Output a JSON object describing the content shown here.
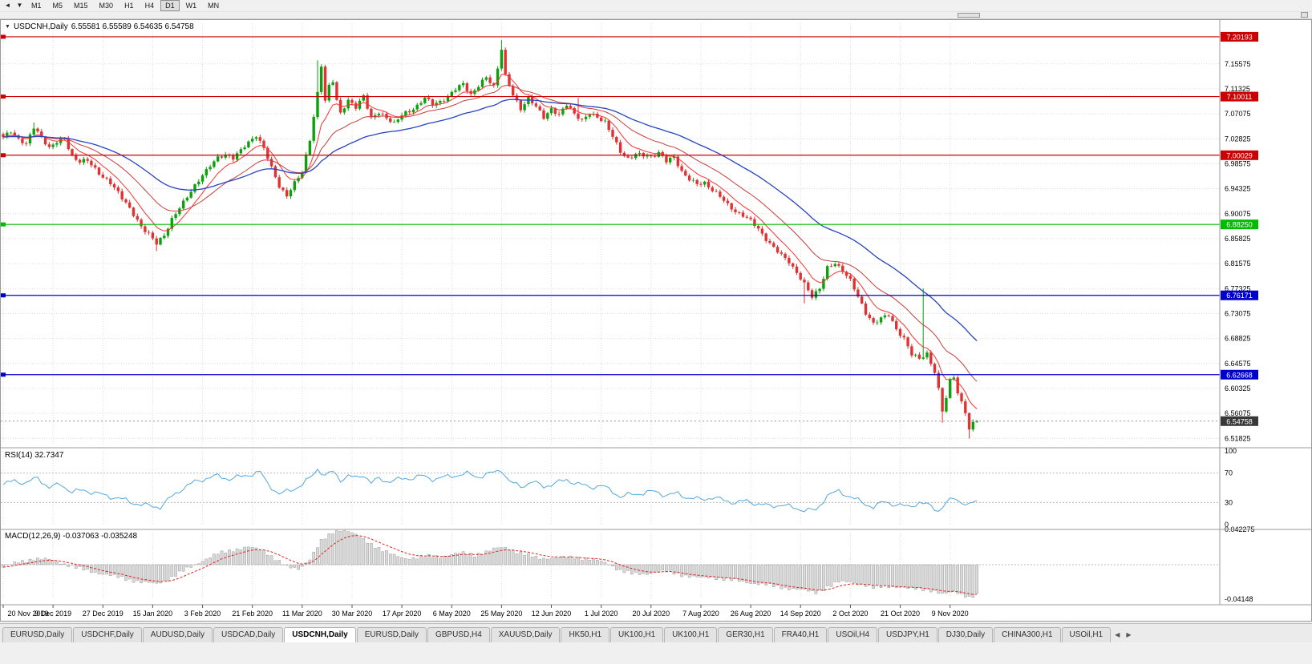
{
  "toolbar": {
    "periods": [
      "M1",
      "M5",
      "M15",
      "M30",
      "H1",
      "H4",
      "D1",
      "W1",
      "MN"
    ],
    "active": "D1"
  },
  "icons": {
    "toolbar_arrow_a": "◄",
    "toolbar_arrow_b": "▼",
    "title_collapse": "▼",
    "tab_scroll_left": "◀",
    "tab_scroll_right": "▶"
  },
  "window": {
    "title": "USDCNH,Daily",
    "ohlc": "6.55581 6.55589 6.54635 6.54758"
  },
  "chart_data": {
    "type": "candlestick",
    "symbol": "USDCNH",
    "period": "Daily",
    "num_candles": 255,
    "x_labels": [
      "20 Nov 2019",
      "9 Dec 2019",
      "27 Dec 2019",
      "15 Jan 2020",
      "3 Feb 2020",
      "21 Feb 2020",
      "11 Mar 2020",
      "30 Mar 2020",
      "17 Apr 2020",
      "6 May 2020",
      "25 May 2020",
      "12 Jun 2020",
      "1 Jul 2020",
      "20 Jul 2020",
      "7 Aug 2020",
      "26 Aug 2020",
      "14 Sep 2020",
      "2 Oct 2020",
      "21 Oct 2020",
      "9 Nov 2020"
    ],
    "days_per_label": 13,
    "price_axis": {
      "ticks": [
        "7.15575",
        "7.11325",
        "7.07075",
        "7.02825",
        "6.98575",
        "6.94325",
        "6.90075",
        "6.85825",
        "6.81575",
        "6.77325",
        "6.73075",
        "6.68825",
        "6.64575",
        "6.60325",
        "6.56075",
        "6.51825"
      ],
      "view_max": 7.225,
      "view_min": 6.505
    },
    "colors": {
      "bull": "#0ca00c",
      "bear": "#e03232",
      "ma_fast": "#ff3030",
      "ma_mid": "#cc3b3b",
      "ma_slow": "#2743c4",
      "rsi_line": "#52a7e0",
      "macd_hist": "#d9d9d9",
      "macd_signal": "#e02020",
      "grid": "#dcdcdc",
      "separator": "#9a9a9a"
    },
    "close_anchors": [
      [
        0,
        7.03
      ],
      [
        2,
        7.042
      ],
      [
        4,
        7.028
      ],
      [
        6,
        7.018
      ],
      [
        8,
        7.048
      ],
      [
        10,
        7.032
      ],
      [
        12,
        7.012
      ],
      [
        14,
        7.022
      ],
      [
        16,
        7.03
      ],
      [
        18,
        6.998
      ],
      [
        20,
        6.988
      ],
      [
        22,
        6.992
      ],
      [
        24,
        6.978
      ],
      [
        26,
        6.962
      ],
      [
        28,
        6.952
      ],
      [
        30,
        6.938
      ],
      [
        32,
        6.92
      ],
      [
        34,
        6.898
      ],
      [
        36,
        6.878
      ],
      [
        38,
        6.868
      ],
      [
        40,
        6.85
      ],
      [
        42,
        6.862
      ],
      [
        44,
        6.892
      ],
      [
        46,
        6.912
      ],
      [
        48,
        6.928
      ],
      [
        50,
        6.948
      ],
      [
        52,
        6.968
      ],
      [
        54,
        6.982
      ],
      [
        56,
        6.995
      ],
      [
        58,
        7.002
      ],
      [
        60,
        6.996
      ],
      [
        62,
        7.008
      ],
      [
        64,
        7.022
      ],
      [
        66,
        7.035
      ],
      [
        68,
        7.012
      ],
      [
        70,
        6.978
      ],
      [
        72,
        6.948
      ],
      [
        74,
        6.932
      ],
      [
        76,
        6.952
      ],
      [
        78,
        6.972
      ],
      [
        80,
        7.028
      ],
      [
        82,
        7.105
      ],
      [
        83,
        7.152
      ],
      [
        84,
        7.092
      ],
      [
        85,
        7.118
      ],
      [
        86,
        7.128
      ],
      [
        87,
        7.095
      ],
      [
        88,
        7.072
      ],
      [
        90,
        7.092
      ],
      [
        92,
        7.082
      ],
      [
        94,
        7.103
      ],
      [
        96,
        7.062
      ],
      [
        98,
        7.072
      ],
      [
        100,
        7.065
      ],
      [
        102,
        7.055
      ],
      [
        104,
        7.068
      ],
      [
        106,
        7.075
      ],
      [
        108,
        7.085
      ],
      [
        110,
        7.098
      ],
      [
        112,
        7.086
      ],
      [
        114,
        7.092
      ],
      [
        116,
        7.1
      ],
      [
        118,
        7.112
      ],
      [
        120,
        7.122
      ],
      [
        122,
        7.104
      ],
      [
        124,
        7.118
      ],
      [
        126,
        7.132
      ],
      [
        128,
        7.118
      ],
      [
        130,
        7.182
      ],
      [
        131,
        7.135
      ],
      [
        133,
        7.102
      ],
      [
        135,
        7.08
      ],
      [
        137,
        7.098
      ],
      [
        139,
        7.082
      ],
      [
        141,
        7.065
      ],
      [
        143,
        7.08
      ],
      [
        145,
        7.068
      ],
      [
        147,
        7.086
      ],
      [
        149,
        7.072
      ],
      [
        151,
        7.06
      ],
      [
        153,
        7.07
      ],
      [
        155,
        7.065
      ],
      [
        157,
        7.058
      ],
      [
        159,
        7.032
      ],
      [
        161,
        7.005
      ],
      [
        163,
        6.995
      ],
      [
        165,
        7.003
      ],
      [
        167,
        6.999
      ],
      [
        169,
        6.997
      ],
      [
        171,
        7.006
      ],
      [
        173,
        6.99
      ],
      [
        175,
        6.996
      ],
      [
        177,
        6.973
      ],
      [
        179,
        6.96
      ],
      [
        181,
        6.95
      ],
      [
        183,
        6.953
      ],
      [
        185,
        6.942
      ],
      [
        187,
        6.93
      ],
      [
        189,
        6.915
      ],
      [
        191,
        6.905
      ],
      [
        193,
        6.898
      ],
      [
        195,
        6.888
      ],
      [
        197,
        6.875
      ],
      [
        199,
        6.858
      ],
      [
        201,
        6.842
      ],
      [
        203,
        6.83
      ],
      [
        205,
        6.82
      ],
      [
        207,
        6.8
      ],
      [
        209,
        6.78
      ],
      [
        211,
        6.76
      ],
      [
        213,
        6.775
      ],
      [
        215,
        6.808
      ],
      [
        217,
        6.815
      ],
      [
        219,
        6.805
      ],
      [
        221,
        6.788
      ],
      [
        223,
        6.758
      ],
      [
        225,
        6.732
      ],
      [
        227,
        6.715
      ],
      [
        229,
        6.722
      ],
      [
        231,
        6.728
      ],
      [
        233,
        6.705
      ],
      [
        235,
        6.688
      ],
      [
        237,
        6.66
      ],
      [
        239,
        6.655
      ],
      [
        241,
        6.663
      ],
      [
        243,
        6.63
      ],
      [
        244,
        6.6
      ],
      [
        245,
        6.565
      ],
      [
        246,
        6.588
      ],
      [
        247,
        6.618
      ],
      [
        248,
        6.625
      ],
      [
        249,
        6.595
      ],
      [
        250,
        6.578
      ],
      [
        251,
        6.562
      ],
      [
        252,
        6.532
      ],
      [
        253,
        6.545
      ],
      [
        254,
        6.5476
      ]
    ],
    "spikes": [
      {
        "day": 8,
        "high": 7.056
      },
      {
        "day": 40,
        "low": 6.837
      },
      {
        "day": 82,
        "high": 7.162
      },
      {
        "day": 130,
        "high": 7.1965
      },
      {
        "day": 150,
        "high": 7.098
      },
      {
        "day": 209,
        "low": 6.748
      },
      {
        "day": 240,
        "high": 6.7735
      },
      {
        "day": 245,
        "low": 6.545
      },
      {
        "day": 252,
        "low": 6.518
      }
    ],
    "hlines": [
      {
        "value": 7.20193,
        "label": "7.20193",
        "color": "#cc0000"
      },
      {
        "value": 7.10011,
        "label": "7.10011",
        "color": "#cc0000"
      },
      {
        "value": 7.00029,
        "label": "7.00029",
        "color": "#cc0000"
      },
      {
        "value": 6.8825,
        "label": "6.88250",
        "color": "#00bb00"
      },
      {
        "value": 6.76171,
        "label": "6.76171",
        "color": "#0000cc"
      },
      {
        "value": 6.62668,
        "label": "6.62668",
        "color": "#0000cc"
      }
    ],
    "current_price": {
      "value": 6.54758,
      "label": "6.54758",
      "bg": "#383838"
    },
    "rsi": {
      "label": "RSI(14) 32.7347",
      "period": 14,
      "current": 32.7347,
      "levels": [
        100,
        70,
        30,
        0
      ],
      "anchors": [
        [
          0,
          54
        ],
        [
          3,
          60
        ],
        [
          6,
          56
        ],
        [
          9,
          64
        ],
        [
          12,
          50
        ],
        [
          15,
          55
        ],
        [
          18,
          44
        ],
        [
          21,
          47
        ],
        [
          24,
          43
        ],
        [
          27,
          39
        ],
        [
          30,
          36
        ],
        [
          33,
          31
        ],
        [
          36,
          27
        ],
        [
          39,
          25
        ],
        [
          41,
          24
        ],
        [
          44,
          38
        ],
        [
          47,
          50
        ],
        [
          50,
          58
        ],
        [
          53,
          63
        ],
        [
          56,
          66
        ],
        [
          59,
          62
        ],
        [
          62,
          65
        ],
        [
          65,
          69
        ],
        [
          67,
          71
        ],
        [
          69,
          56
        ],
        [
          72,
          41
        ],
        [
          75,
          47
        ],
        [
          78,
          54
        ],
        [
          80,
          63
        ],
        [
          82,
          76
        ],
        [
          84,
          66
        ],
        [
          86,
          72
        ],
        [
          88,
          61
        ],
        [
          90,
          66
        ],
        [
          92,
          63
        ],
        [
          94,
          68
        ],
        [
          96,
          57
        ],
        [
          98,
          62
        ],
        [
          100,
          59
        ],
        [
          103,
          61
        ],
        [
          106,
          63
        ],
        [
          109,
          66
        ],
        [
          112,
          62
        ],
        [
          115,
          64
        ],
        [
          118,
          67
        ],
        [
          121,
          69
        ],
        [
          124,
          65
        ],
        [
          127,
          69
        ],
        [
          129,
          73
        ],
        [
          130,
          75
        ],
        [
          132,
          58
        ],
        [
          135,
          52
        ],
        [
          138,
          58
        ],
        [
          141,
          52
        ],
        [
          144,
          56
        ],
        [
          147,
          61
        ],
        [
          150,
          55
        ],
        [
          153,
          51
        ],
        [
          156,
          53
        ],
        [
          159,
          45
        ],
        [
          161,
          38
        ],
        [
          164,
          41
        ],
        [
          167,
          43
        ],
        [
          170,
          45
        ],
        [
          173,
          40
        ],
        [
          176,
          42
        ],
        [
          179,
          36
        ],
        [
          182,
          34
        ],
        [
          185,
          37
        ],
        [
          188,
          33
        ],
        [
          191,
          30
        ],
        [
          194,
          32
        ],
        [
          197,
          28
        ],
        [
          200,
          25
        ],
        [
          203,
          27
        ],
        [
          206,
          23
        ],
        [
          209,
          20
        ],
        [
          212,
          19
        ],
        [
          215,
          40
        ],
        [
          218,
          45
        ],
        [
          221,
          38
        ],
        [
          224,
          30
        ],
        [
          227,
          24
        ],
        [
          230,
          31
        ],
        [
          233,
          27
        ],
        [
          236,
          24
        ],
        [
          239,
          30
        ],
        [
          242,
          25
        ],
        [
          244,
          19
        ],
        [
          246,
          29
        ],
        [
          248,
          36
        ],
        [
          250,
          31
        ],
        [
          252,
          26
        ],
        [
          254,
          32.7
        ]
      ]
    },
    "macd": {
      "label": "MACD(12,26,9) -0.037063 -0.035248",
      "macd_value": -0.037063,
      "signal_value": -0.035248,
      "axis": [
        "0.042275",
        "-0.04148"
      ],
      "anchors": [
        [
          0,
          -0.003
        ],
        [
          4,
          0.003
        ],
        [
          8,
          0.007
        ],
        [
          12,
          0.006
        ],
        [
          16,
          0.001
        ],
        [
          20,
          -0.005
        ],
        [
          24,
          -0.009
        ],
        [
          28,
          -0.013
        ],
        [
          32,
          -0.017
        ],
        [
          36,
          -0.021
        ],
        [
          40,
          -0.023
        ],
        [
          44,
          -0.015
        ],
        [
          48,
          -0.005
        ],
        [
          52,
          0.005
        ],
        [
          56,
          0.013
        ],
        [
          60,
          0.018
        ],
        [
          64,
          0.021
        ],
        [
          68,
          0.017
        ],
        [
          71,
          0.007
        ],
        [
          74,
          -0.003
        ],
        [
          77,
          -0.005
        ],
        [
          80,
          0.007
        ],
        [
          83,
          0.028
        ],
        [
          86,
          0.039
        ],
        [
          88,
          0.042
        ],
        [
          90,
          0.04
        ],
        [
          93,
          0.033
        ],
        [
          96,
          0.025
        ],
        [
          99,
          0.017
        ],
        [
          102,
          0.011
        ],
        [
          105,
          0.008
        ],
        [
          108,
          0.008
        ],
        [
          111,
          0.01
        ],
        [
          114,
          0.01
        ],
        [
          117,
          0.012
        ],
        [
          120,
          0.014
        ],
        [
          123,
          0.012
        ],
        [
          126,
          0.015
        ],
        [
          129,
          0.02
        ],
        [
          131,
          0.021
        ],
        [
          134,
          0.015
        ],
        [
          137,
          0.011
        ],
        [
          140,
          0.008
        ],
        [
          143,
          0.008
        ],
        [
          146,
          0.008
        ],
        [
          149,
          0.009
        ],
        [
          152,
          0.007
        ],
        [
          155,
          0.005
        ],
        [
          158,
          0.001
        ],
        [
          161,
          -0.007
        ],
        [
          164,
          -0.011
        ],
        [
          167,
          -0.011
        ],
        [
          170,
          -0.009
        ],
        [
          173,
          -0.008
        ],
        [
          176,
          -0.011
        ],
        [
          179,
          -0.014
        ],
        [
          182,
          -0.016
        ],
        [
          185,
          -0.015
        ],
        [
          188,
          -0.017
        ],
        [
          191,
          -0.019
        ],
        [
          194,
          -0.021
        ],
        [
          197,
          -0.023
        ],
        [
          200,
          -0.025
        ],
        [
          203,
          -0.027
        ],
        [
          206,
          -0.029
        ],
        [
          209,
          -0.031
        ],
        [
          212,
          -0.033
        ],
        [
          215,
          -0.027
        ],
        [
          218,
          -0.021
        ],
        [
          221,
          -0.02
        ],
        [
          224,
          -0.024
        ],
        [
          227,
          -0.028
        ],
        [
          230,
          -0.025
        ],
        [
          233,
          -0.027
        ],
        [
          236,
          -0.029
        ],
        [
          239,
          -0.028
        ],
        [
          242,
          -0.031
        ],
        [
          245,
          -0.036
        ],
        [
          248,
          -0.031
        ],
        [
          250,
          -0.035
        ],
        [
          252,
          -0.04
        ],
        [
          254,
          -0.0371
        ]
      ]
    }
  },
  "tabs": {
    "items": [
      "EURUSD,Daily",
      "USDCHF,Daily",
      "AUDUSD,Daily",
      "USDCAD,Daily",
      "USDCNH,Daily",
      "EURUSD,Daily",
      "GBPUSD,H4",
      "XAUUSD,Daily",
      "HK50,H1",
      "UK100,H1",
      "UK100,H1",
      "GER30,H1",
      "FRA40,H1",
      "USOil,H4",
      "USDJPY,H1",
      "DJ30,Daily",
      "CHINA300,H1",
      "USOil,H1"
    ],
    "active_index": 4
  }
}
